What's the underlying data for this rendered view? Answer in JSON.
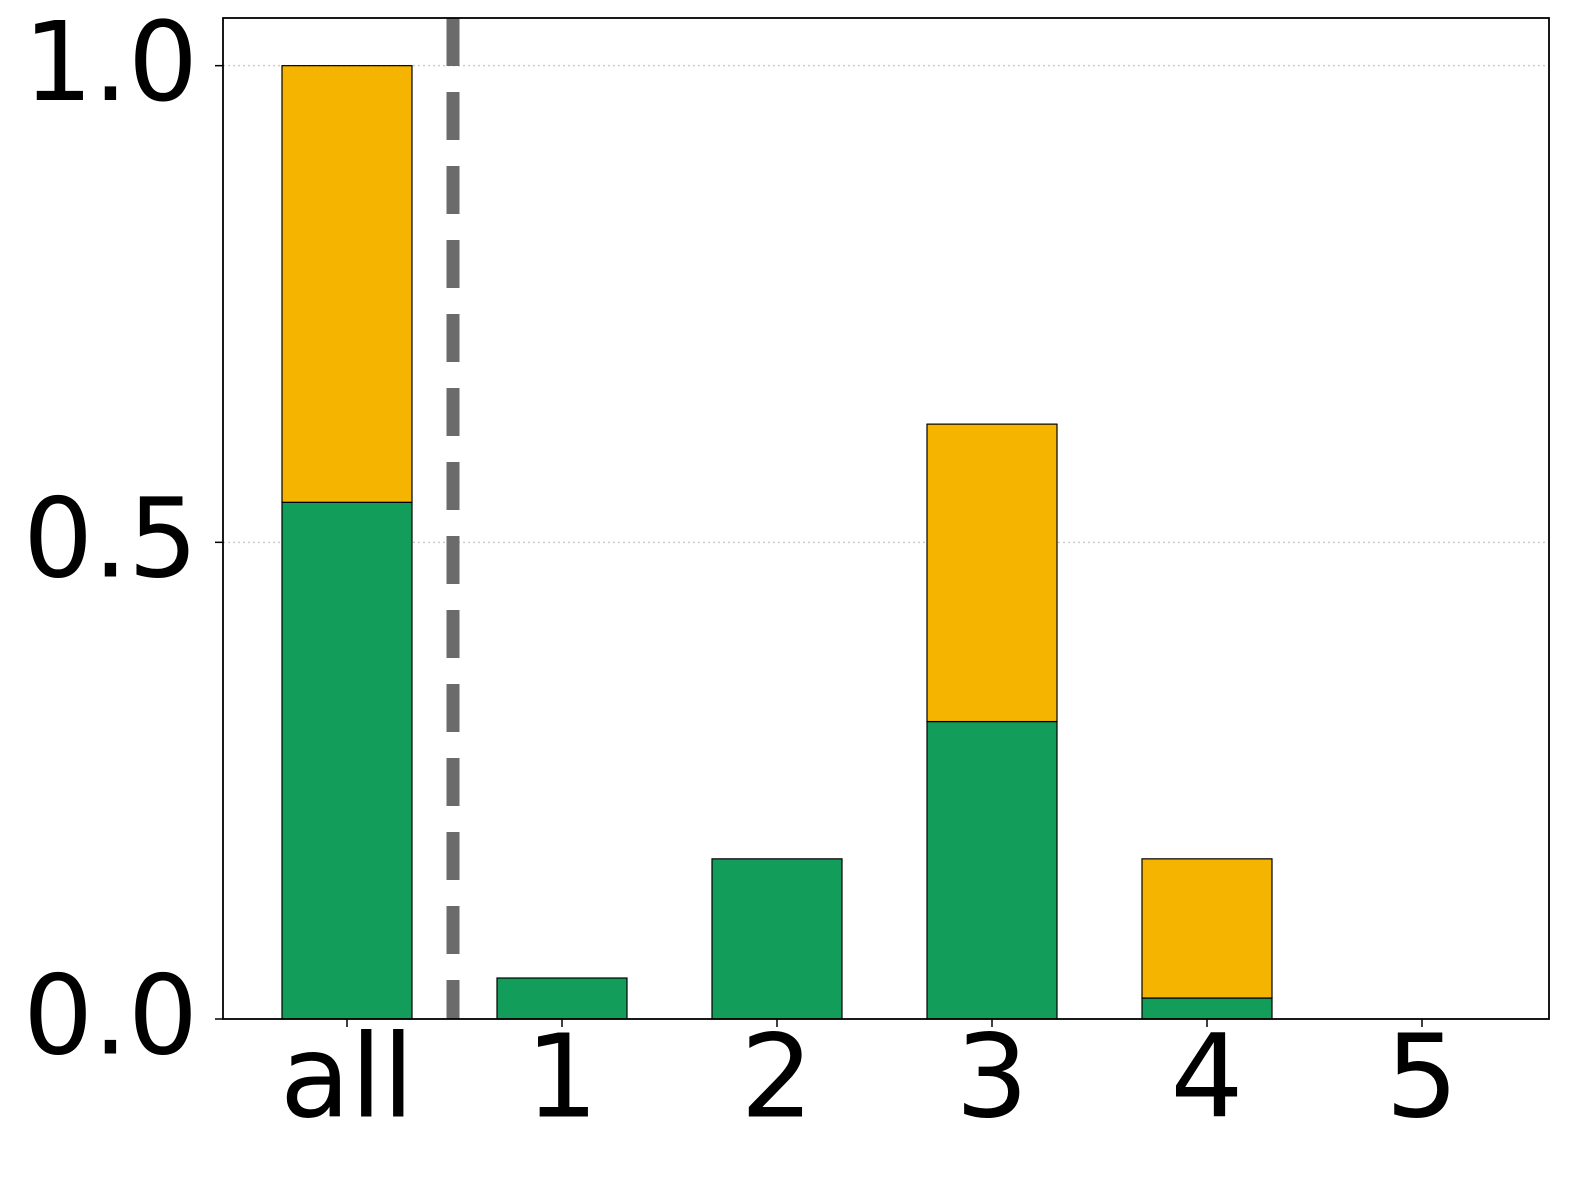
{
  "chart_data": {
    "type": "stacked_bar",
    "categories": [
      "all",
      "1",
      "2",
      "3",
      "4",
      "5"
    ],
    "series": [
      {
        "color": "#129e5a",
        "values": [
          0.542,
          0.043,
          0.168,
          0.312,
          0.022,
          0
        ]
      },
      {
        "color": "#f4b400",
        "values": [
          0.458,
          0,
          0,
          0.312,
          0.146,
          0
        ]
      }
    ],
    "ylim": [
      0,
      1.05
    ],
    "yticks": [
      {
        "value": 0,
        "label": "0.0"
      },
      {
        "value": 0.5,
        "label": "0.5"
      },
      {
        "value": 1,
        "label": "1.0"
      }
    ],
    "grid": true
  }
}
